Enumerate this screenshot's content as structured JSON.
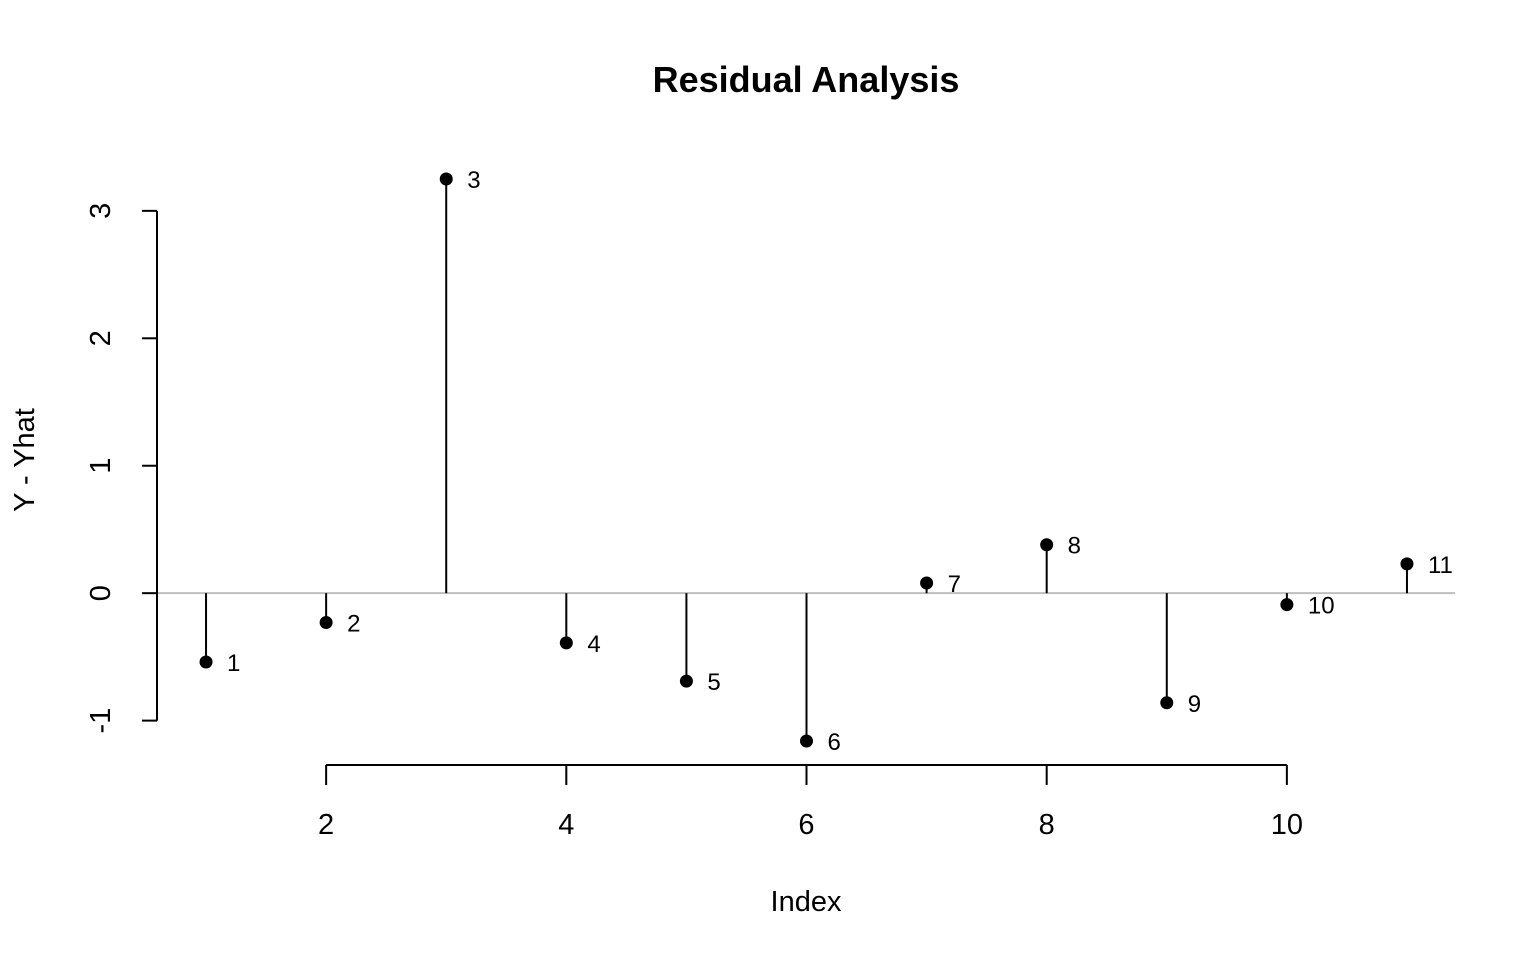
{
  "chart_data": {
    "type": "scatter",
    "title": "Residual Analysis",
    "xlabel": "Index",
    "ylabel": "Y - Yhat",
    "x": [
      1,
      2,
      3,
      4,
      5,
      6,
      7,
      8,
      9,
      10,
      11
    ],
    "y": [
      -0.54,
      -0.23,
      3.25,
      -0.39,
      -0.69,
      -1.16,
      0.08,
      0.38,
      -0.86,
      -0.09,
      0.23
    ],
    "point_labels": [
      "1",
      "2",
      "3",
      "4",
      "5",
      "6",
      "7",
      "8",
      "9",
      "10",
      "11"
    ],
    "xlim": [
      0.6,
      11.4
    ],
    "ylim": [
      -1.16,
      3.25
    ],
    "x_ticks": [
      2,
      4,
      6,
      8,
      10
    ],
    "x_tick_labels": [
      "2",
      "4",
      "6",
      "8",
      "10"
    ],
    "y_ticks": [
      -1,
      0,
      1,
      2,
      3
    ],
    "y_tick_labels": [
      "-1",
      "0",
      "1",
      "2",
      "3"
    ],
    "reference_line_y": 0,
    "reference_line_color": "#bebebe",
    "marker_color": "#000000",
    "grid": false,
    "legend": "none"
  }
}
